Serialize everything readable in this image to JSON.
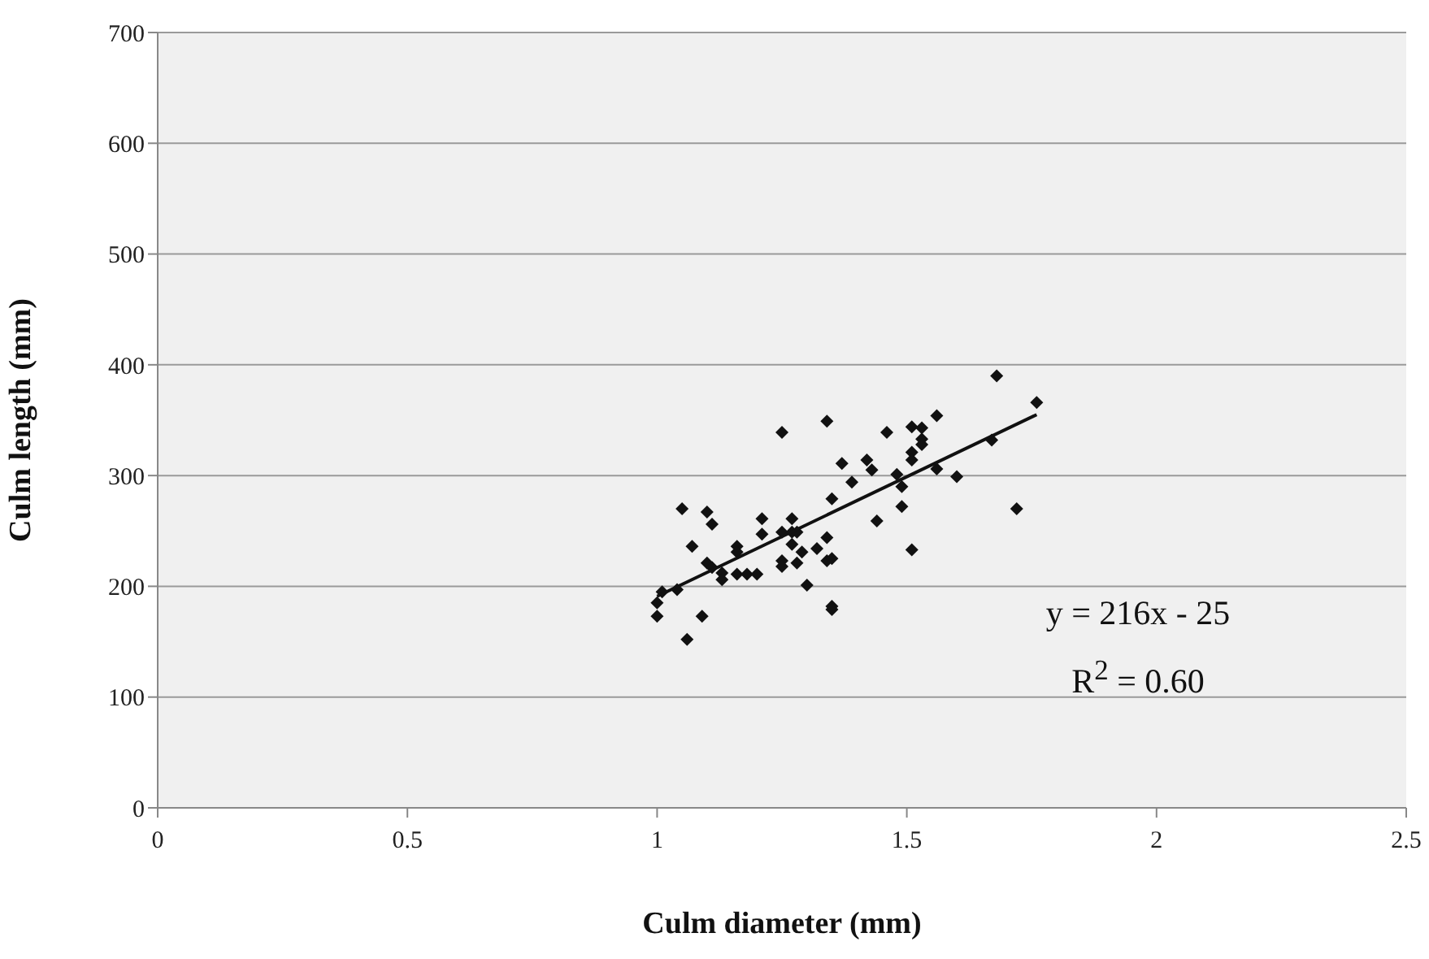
{
  "chart_data": {
    "type": "scatter",
    "xlabel": "Culm diameter (mm)",
    "ylabel": "Culm length (mm)",
    "xlim": [
      0,
      2.5
    ],
    "xticks": [
      0,
      0.5,
      1,
      1.5,
      2,
      2.5
    ],
    "ylim": [
      0,
      700
    ],
    "yticks": [
      0,
      100,
      200,
      300,
      400,
      500,
      600,
      700
    ],
    "grid": "y",
    "marker": "diamond",
    "series": [
      {
        "color": "#111111",
        "x": [
          1.0,
          1.0,
          1.01,
          1.04,
          1.06,
          1.09,
          1.05,
          1.07,
          1.1,
          1.11,
          1.1,
          1.11,
          1.13,
          1.13,
          1.16,
          1.16,
          1.16,
          1.18,
          1.2,
          1.21,
          1.21,
          1.25,
          1.25,
          1.25,
          1.25,
          1.27,
          1.27,
          1.27,
          1.28,
          1.28,
          1.29,
          1.3,
          1.32,
          1.34,
          1.34,
          1.34,
          1.35,
          1.35,
          1.35,
          1.35,
          1.37,
          1.39,
          1.44,
          1.46,
          1.42,
          1.43,
          1.48,
          1.49,
          1.49,
          1.51,
          1.51,
          1.51,
          1.51,
          1.53,
          1.53,
          1.53,
          1.56,
          1.56,
          1.6,
          1.67,
          1.68,
          1.72,
          1.76
        ],
        "values": [
          173,
          185,
          195,
          197,
          152,
          173,
          270,
          236,
          267,
          256,
          221,
          217,
          212,
          206,
          236,
          231,
          211,
          211,
          211,
          261,
          247,
          339,
          249,
          223,
          218,
          261,
          249,
          238,
          221,
          249,
          231,
          201,
          234,
          349,
          244,
          223,
          225,
          182,
          179,
          279,
          311,
          294,
          259,
          339,
          314,
          305,
          301,
          290,
          272,
          233,
          344,
          321,
          314,
          343,
          333,
          328,
          354,
          306,
          299,
          332,
          390,
          270,
          366
        ]
      },
      {
        "type": "line",
        "color": "#111111",
        "marker": "none",
        "line_style": "solid",
        "x": [
          1.0,
          1.76
        ],
        "values": [
          191,
          355
        ]
      }
    ],
    "annotations": [
      "y = 216x - 25",
      "R$^{2}$ = 0.60"
    ]
  }
}
